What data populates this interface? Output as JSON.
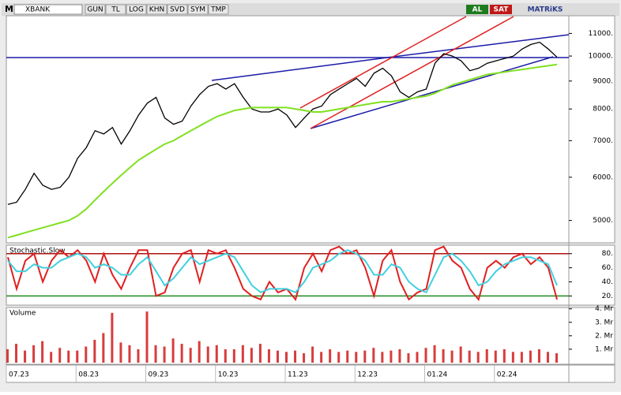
{
  "toolbar": {
    "symbol_prefix": "M",
    "symbol": "XBANK",
    "buttons": [
      "GUN",
      "TL",
      "LOG",
      "KHN",
      "SVD",
      "SYM",
      "TMP"
    ],
    "buy": "AL",
    "sell": "SAT",
    "brand": "MATRiKS"
  },
  "chart_data": [
    {
      "type": "line",
      "log_scale": true,
      "ylim": [
        4550,
        11850
      ],
      "yticks": [
        {
          "value": 5000,
          "label": "5000."
        },
        {
          "value": 6000,
          "label": "6000."
        },
        {
          "value": 7000,
          "label": "7000."
        },
        {
          "value": 8000,
          "label": "8000."
        },
        {
          "value": 9000,
          "label": "9000."
        },
        {
          "value": 10000,
          "label": "10000."
        },
        {
          "value": 11000,
          "label": "11000."
        }
      ],
      "series": [
        {
          "color": "#000000",
          "values": [
            5350,
            5400,
            5700,
            6100,
            5800,
            5700,
            5750,
            6000,
            6500,
            6800,
            7300,
            7200,
            7400,
            6900,
            7300,
            7800,
            8200,
            8400,
            7700,
            7500,
            7600,
            8100,
            8500,
            8800,
            8900,
            8700,
            8900,
            8400,
            8000,
            7900,
            7900,
            8000,
            7800,
            7400,
            7700,
            8000,
            8100,
            8500,
            8700,
            8900,
            9100,
            8800,
            9300,
            9500,
            9200,
            8600,
            8400,
            8600,
            8700,
            9700,
            10100,
            10000,
            9800,
            9400,
            9500,
            9700,
            9800,
            9900,
            10000,
            10300,
            10500,
            10600,
            10300,
            9950
          ]
        },
        {
          "color": "#80e020",
          "values": [
            4650,
            4700,
            4750,
            4800,
            4850,
            4900,
            4950,
            5000,
            5100,
            5250,
            5450,
            5650,
            5850,
            6050,
            6250,
            6450,
            6600,
            6750,
            6900,
            7000,
            7150,
            7300,
            7450,
            7600,
            7750,
            7850,
            7950,
            8000,
            8050,
            8050,
            8050,
            8050,
            8050,
            8000,
            7950,
            7900,
            7900,
            7950,
            8000,
            8050,
            8100,
            8150,
            8200,
            8250,
            8250,
            8300,
            8350,
            8400,
            8450,
            8550,
            8700,
            8850,
            8950,
            9050,
            9150,
            9250,
            9300,
            9350,
            9400,
            9450,
            9500,
            9550,
            9600,
            9650
          ]
        }
      ]
    },
    {
      "type": "line",
      "title": "Stochastic.Slow",
      "ylim": [
        7,
        92
      ],
      "yticks": [
        {
          "value": 20,
          "label": "20."
        },
        {
          "value": 40,
          "label": "40."
        },
        {
          "value": 60,
          "label": "60."
        },
        {
          "value": 80,
          "label": "80."
        }
      ],
      "series": [
        {
          "color": "#e02020",
          "values": [
            75,
            30,
            70,
            80,
            40,
            70,
            85,
            75,
            85,
            70,
            40,
            80,
            50,
            30,
            60,
            85,
            85,
            20,
            25,
            60,
            80,
            85,
            40,
            85,
            80,
            85,
            60,
            30,
            20,
            15,
            40,
            25,
            30,
            15,
            60,
            80,
            55,
            85,
            90,
            80,
            85,
            60,
            20,
            70,
            85,
            40,
            15,
            25,
            30,
            85,
            90,
            70,
            60,
            30,
            15,
            60,
            70,
            60,
            75,
            80,
            65,
            75,
            60,
            15
          ]
        },
        {
          "color": "#40d0e0",
          "values": [
            70,
            55,
            55,
            65,
            60,
            60,
            70,
            75,
            80,
            75,
            60,
            65,
            60,
            50,
            50,
            65,
            75,
            55,
            35,
            45,
            60,
            75,
            65,
            70,
            75,
            80,
            75,
            55,
            35,
            25,
            30,
            30,
            30,
            25,
            40,
            60,
            65,
            70,
            80,
            85,
            80,
            70,
            50,
            50,
            65,
            60,
            40,
            30,
            25,
            50,
            75,
            80,
            70,
            55,
            35,
            40,
            55,
            65,
            70,
            75,
            75,
            70,
            65,
            35
          ]
        }
      ]
    },
    {
      "type": "bar",
      "title": "Volume",
      "ylim": [
        0,
        4.1
      ],
      "yticks": [
        {
          "value": 1,
          "label": "1. Mr"
        },
        {
          "value": 2,
          "label": "2. Mr"
        },
        {
          "value": 3,
          "label": "3. Mr"
        },
        {
          "value": 4,
          "label": "4. Mr"
        }
      ],
      "categories": [
        "07.23",
        null,
        null,
        null,
        null,
        null,
        null,
        null,
        "08.23",
        null,
        null,
        null,
        null,
        null,
        null,
        null,
        "09.23",
        null,
        null,
        null,
        null,
        null,
        null,
        null,
        "10.23",
        null,
        null,
        null,
        null,
        null,
        null,
        null,
        "11.23",
        null,
        null,
        null,
        null,
        null,
        null,
        null,
        "12.23",
        null,
        null,
        null,
        null,
        null,
        null,
        null,
        "01.24",
        null,
        null,
        null,
        null,
        null,
        null,
        null,
        "02.24",
        null,
        null,
        null,
        null,
        null,
        null,
        null
      ],
      "color": "#d83c3c",
      "values": [
        1.0,
        1.4,
        0.9,
        1.3,
        1.6,
        0.8,
        1.1,
        0.9,
        0.9,
        1.2,
        1.7,
        2.2,
        3.7,
        1.5,
        1.3,
        1.0,
        3.8,
        1.3,
        1.2,
        1.8,
        1.4,
        1.1,
        1.6,
        1.2,
        1.3,
        1.0,
        1.0,
        1.3,
        1.1,
        1.4,
        1.0,
        0.9,
        0.8,
        0.9,
        0.7,
        1.2,
        0.8,
        1.0,
        0.8,
        0.9,
        0.8,
        0.9,
        1.1,
        0.8,
        0.9,
        1.0,
        0.7,
        0.8,
        1.1,
        1.3,
        1.0,
        0.9,
        1.2,
        0.9,
        0.8,
        1.0,
        0.9,
        1.0,
        0.8,
        0.8,
        0.9,
        1.0,
        0.8,
        0.7
      ]
    }
  ]
}
